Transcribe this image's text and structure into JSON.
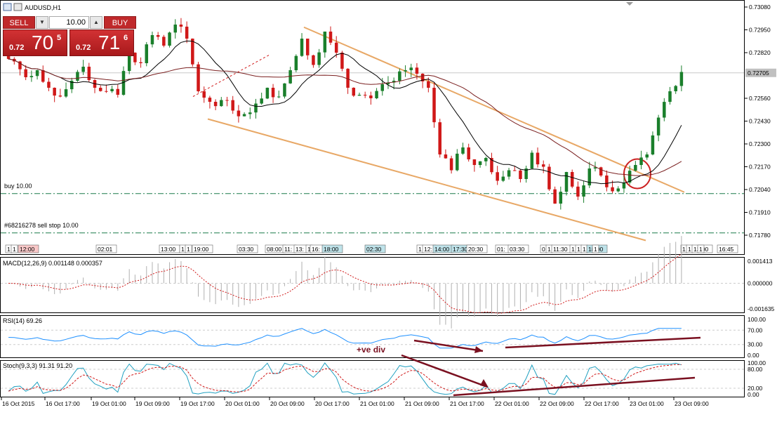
{
  "window": {
    "title": "AUDUSD,H1"
  },
  "trade_panel": {
    "sell_label": "SELL",
    "buy_label": "BUY",
    "volume": "10.00",
    "sell_price_prefix": "0.72",
    "sell_price_big": "70",
    "sell_price_sup": "5",
    "buy_price_prefix": "0.72",
    "buy_price_big": "71",
    "buy_price_sup": "6"
  },
  "main_chart": {
    "symbol": "AUDUSD",
    "timeframe": "H1",
    "price_ticks": [
      "0.73080",
      "0.72950",
      "0.72820",
      "0.72560",
      "0.72430",
      "0.72300",
      "0.72170",
      "0.72040",
      "0.71910",
      "0.71780"
    ],
    "current_price_label": "0.72705",
    "current_price": 0.72705,
    "buy_order_label": "buy 10.00",
    "buy_order_price": 0.72017,
    "sell_stop_label": "#68216278 sell stop 10.00",
    "sell_stop_price": 0.71793,
    "colors": {
      "bull": "#1a7f2b",
      "bear": "#d01818",
      "channel": "#e8a866",
      "fast_ma": "#000000",
      "slow_ma": "#7a1f1f",
      "order_line": "#1a7a4a",
      "circle": "#cc2222"
    },
    "event_markers": [
      "1",
      "1",
      "12:00",
      "02:01",
      "13:00",
      "1",
      "1",
      "19:00",
      "03:30",
      "08:00",
      "11:",
      "13:",
      "1",
      "16:",
      "18:00",
      "02:30",
      "1",
      "12:",
      "14:00",
      "17:30",
      "20:30",
      "01:",
      "03:30",
      "0",
      "1",
      "11:30",
      "1",
      "1",
      "1",
      "18:00",
      "1",
      "1",
      "1",
      "13:00",
      "1",
      "16:45"
    ]
  },
  "macd": {
    "label": "MACD(12,26,9) 0.001148 0.000357",
    "ticks": [
      "0.001413",
      "0.000000",
      "-0.001635"
    ]
  },
  "rsi": {
    "label": "RSI(14) 69.26",
    "ticks": [
      "100.00",
      "70.00",
      "30.00",
      "0.00"
    ]
  },
  "stoch": {
    "label": "Stoch(9,3,3) 91.31 91.20",
    "ticks": [
      "100.00",
      "80.00",
      "20.00",
      "0.00"
    ]
  },
  "annotation": {
    "divergence_text": "+ve div",
    "color": "#7a1020"
  },
  "time_axis": [
    "16 Oct 2015",
    "16 Oct 17:00",
    "19 Oct 01:00",
    "19 Oct 09:00",
    "19 Oct 17:00",
    "20 Oct 01:00",
    "20 Oct 09:00",
    "20 Oct 17:00",
    "21 Oct 01:00",
    "21 Oct 09:00",
    "21 Oct 17:00",
    "22 Oct 01:00",
    "22 Oct 09:00",
    "22 Oct 17:00",
    "23 Oct 01:00",
    "23 Oct 09:00"
  ],
  "chart_data": {
    "type": "candlestick",
    "title": "AUDUSD,H1",
    "ylim": [
      0.7174,
      0.731
    ],
    "x_ticks": [
      "16 Oct 2015",
      "16 Oct 17:00",
      "19 Oct 01:00",
      "19 Oct 09:00",
      "19 Oct 17:00",
      "20 Oct 01:00",
      "20 Oct 09:00",
      "20 Oct 17:00",
      "21 Oct 01:00",
      "21 Oct 09:00",
      "21 Oct 17:00",
      "22 Oct 01:00",
      "22 Oct 09:00",
      "22 Oct 17:00",
      "23 Oct 01:00",
      "23 Oct 09:00"
    ],
    "close_path": [
      0.7277,
      0.7268,
      0.7272,
      0.7262,
      0.7257,
      0.7266,
      0.7274,
      0.7262,
      0.726,
      0.7258,
      0.7282,
      0.7276,
      0.7292,
      0.7286,
      0.7298,
      0.729,
      0.726,
      0.7254,
      0.7255,
      0.7249,
      0.7247,
      0.7253,
      0.7262,
      0.7257,
      0.7272,
      0.729,
      0.7275,
      0.7294,
      0.7282,
      0.7262,
      0.7258,
      0.7256,
      0.7264,
      0.7266,
      0.7272,
      0.727,
      0.7262,
      0.7224,
      0.7215,
      0.7228,
      0.7218,
      0.7222,
      0.7209,
      0.7215,
      0.721,
      0.7225,
      0.7217,
      0.7196,
      0.7214,
      0.72,
      0.7216,
      0.7212,
      0.7203,
      0.7208,
      0.7218,
      0.7224,
      0.7245,
      0.726,
      0.7271
    ],
    "series": [
      {
        "name": "Close",
        "values": [
          0.7277,
          0.7268,
          0.7272,
          0.7262,
          0.7257,
          0.7266,
          0.7274,
          0.7262,
          0.726,
          0.7258,
          0.7282,
          0.7276,
          0.7292,
          0.7286,
          0.7298,
          0.729,
          0.726,
          0.7254,
          0.7255,
          0.7249,
          0.7247,
          0.7253,
          0.7262,
          0.7257,
          0.7272,
          0.729,
          0.7275,
          0.7294,
          0.7282,
          0.7262,
          0.7258,
          0.7256,
          0.7264,
          0.7266,
          0.7272,
          0.727,
          0.7262,
          0.7224,
          0.7215,
          0.7228,
          0.7218,
          0.7222,
          0.7209,
          0.7215,
          0.721,
          0.7225,
          0.7217,
          0.7196,
          0.7214,
          0.72,
          0.7216,
          0.7212,
          0.7203,
          0.7208,
          0.7218,
          0.7224,
          0.7245,
          0.726,
          0.7271
        ]
      }
    ],
    "horizontal_levels": [
      {
        "name": "buy 10.00",
        "value": 0.72017
      },
      {
        "name": "#68216278 sell stop 10.00",
        "value": 0.71793
      },
      {
        "name": "0.72705",
        "value": 0.72705
      }
    ],
    "indicators": [
      {
        "name": "MACD(12,26,9)",
        "main": 0.001148,
        "signal": 0.000357,
        "ylim": [
          -0.001635,
          0.001413
        ]
      },
      {
        "name": "RSI(14)",
        "value": 69.26,
        "levels": [
          70,
          30
        ],
        "ylim": [
          0,
          100
        ]
      },
      {
        "name": "Stoch(9,3,3)",
        "main": 91.31,
        "signal": 91.2,
        "levels": [
          80,
          20
        ],
        "ylim": [
          0,
          100
        ]
      }
    ],
    "grid": false
  }
}
